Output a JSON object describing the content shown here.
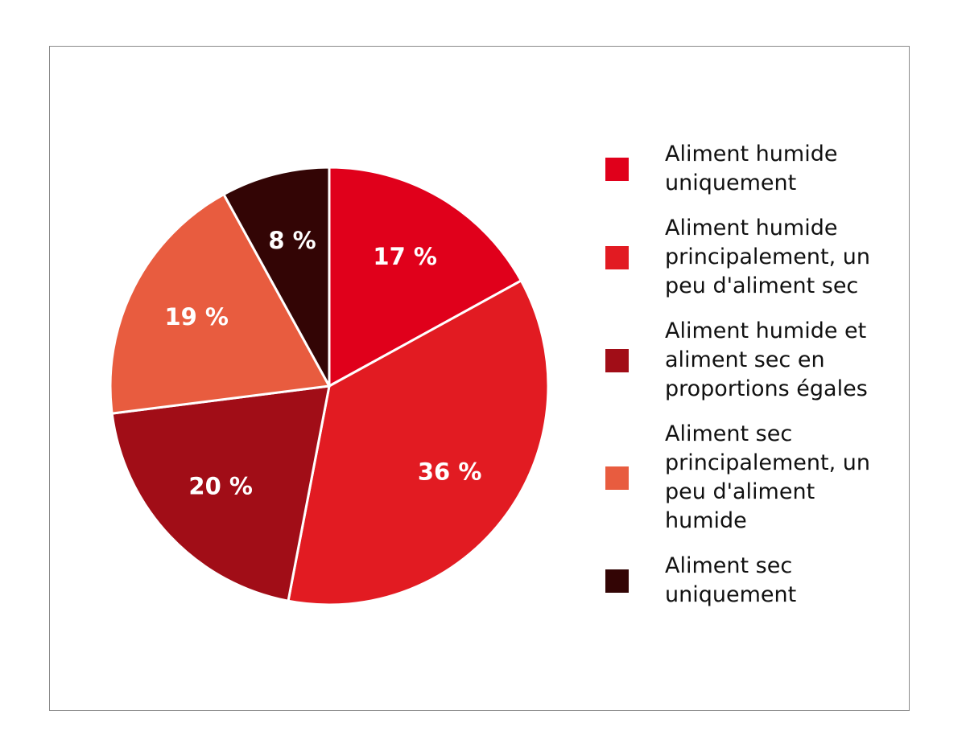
{
  "chart_data": {
    "type": "pie",
    "categories": [
      "Aliment humide uniquement",
      "Aliment humide principalement, un peu d'aliment sec",
      "Aliment humide et aliment sec en proportions égales",
      "Aliment sec principalement, un peu d'aliment humide",
      "Aliment sec uniquement"
    ],
    "values": [
      17,
      36,
      20,
      19,
      8
    ],
    "value_labels": [
      "17 %",
      "36 %",
      "20 %",
      "19 %",
      "8 %"
    ],
    "colors": [
      "#e0001b",
      "#e21b22",
      "#a10d17",
      "#e85c3f",
      "#330505"
    ]
  }
}
